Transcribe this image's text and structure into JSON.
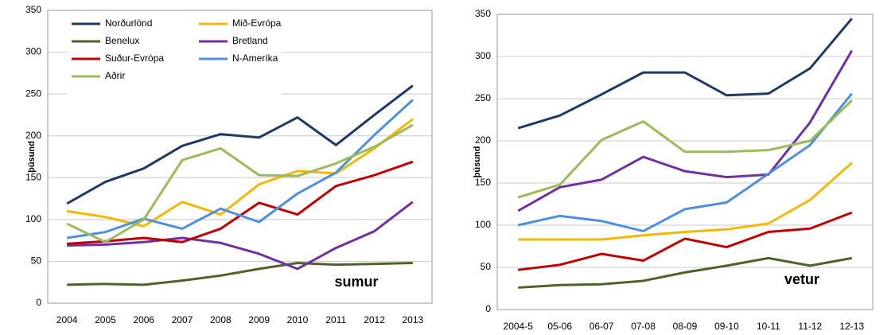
{
  "chart_data": [
    {
      "type": "line",
      "annotation": "sumur",
      "y_label": "þúsund",
      "legend": "upper left",
      "grid": true,
      "categories": [
        "2004",
        "2005",
        "2006",
        "2007",
        "2008",
        "2009",
        "2010",
        "2011",
        "2012",
        "2013"
      ],
      "ylim": [
        0,
        350
      ],
      "yticks": [
        0,
        50,
        100,
        150,
        200,
        250,
        300,
        350
      ],
      "series": [
        {
          "name": "Norðurlönd",
          "color": "#1f3864",
          "values": [
            119,
            145,
            161,
            188,
            202,
            198,
            222,
            189,
            225,
            260
          ]
        },
        {
          "name": "Mið-Evrópa",
          "color": "#f4b800",
          "values": [
            110,
            103,
            92,
            121,
            106,
            142,
            158,
            155,
            185,
            220
          ]
        },
        {
          "name": "Benelux",
          "color": "#4f6228",
          "values": [
            22,
            23,
            22,
            27,
            33,
            41,
            48,
            46,
            47,
            48
          ]
        },
        {
          "name": "Bretland",
          "color": "#7030a0",
          "values": [
            69,
            70,
            73,
            78,
            72,
            59,
            41,
            66,
            86,
            121
          ]
        },
        {
          "name": "Suður-Evrópa",
          "color": "#c00000",
          "values": [
            71,
            74,
            78,
            73,
            89,
            120,
            106,
            140,
            153,
            169
          ]
        },
        {
          "name": "N-Ameríka",
          "color": "#4f8fdf",
          "values": [
            78,
            85,
            101,
            89,
            113,
            97,
            131,
            156,
            201,
            243
          ]
        },
        {
          "name": "Aðrir",
          "color": "#9bbb59",
          "values": [
            95,
            73,
            100,
            171,
            185,
            153,
            152,
            167,
            187,
            213
          ]
        }
      ]
    },
    {
      "type": "line",
      "annotation": "vetur",
      "y_label": "þúsund",
      "grid": true,
      "categories": [
        "2004-5",
        "05-06",
        "06-07",
        "07-08",
        "08-09",
        "09-10",
        "10-11",
        "11-12",
        "12-13"
      ],
      "ylim": [
        0,
        350
      ],
      "yticks": [
        0,
        50,
        100,
        150,
        200,
        250,
        300,
        350
      ],
      "series": [
        {
          "color": "#1f3864",
          "values": [
            215,
            230,
            255,
            281,
            281,
            254,
            256,
            286,
            345
          ]
        },
        {
          "color": "#f4b800",
          "values": [
            83,
            83,
            83,
            88,
            92,
            95,
            102,
            130,
            174
          ]
        },
        {
          "color": "#4f6228",
          "values": [
            26,
            29,
            30,
            34,
            44,
            52,
            61,
            52,
            61
          ]
        },
        {
          "color": "#7030a0",
          "values": [
            117,
            145,
            154,
            181,
            164,
            157,
            160,
            222,
            307
          ]
        },
        {
          "color": "#c00000",
          "values": [
            47,
            53,
            66,
            58,
            84,
            74,
            92,
            96,
            115
          ]
        },
        {
          "color": "#4f8fdf",
          "values": [
            100,
            111,
            105,
            93,
            119,
            127,
            161,
            195,
            256
          ]
        },
        {
          "color": "#9bbb59",
          "values": [
            133,
            148,
            201,
            223,
            187,
            187,
            189,
            200,
            248
          ]
        }
      ]
    }
  ]
}
